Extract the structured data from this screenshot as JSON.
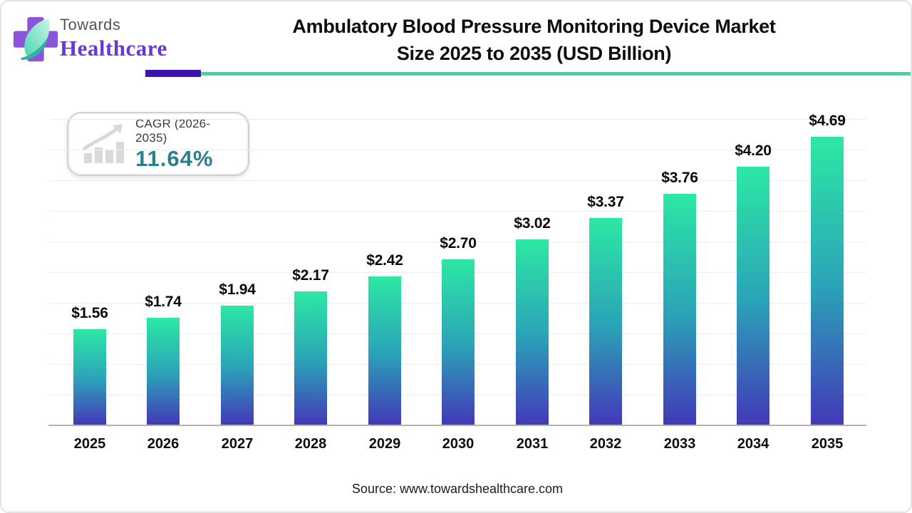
{
  "header": {
    "logo": {
      "line1": "Towards",
      "line2": "Healthcare"
    },
    "title_line1": "Ambulatory Blood Pressure Monitoring Device Market",
    "title_line2": "Size 2025 to 2035 (USD Billion)"
  },
  "cagr_badge": {
    "label": "CAGR (2026-2035)",
    "value": "11.64%"
  },
  "chart_data": {
    "type": "bar",
    "title": "Ambulatory Blood Pressure Monitoring Device Market Size 2025 to 2035 (USD Billion)",
    "categories": [
      "2025",
      "2026",
      "2027",
      "2028",
      "2029",
      "2030",
      "2031",
      "2032",
      "2033",
      "2034",
      "2035"
    ],
    "values": [
      1.56,
      1.74,
      1.94,
      2.17,
      2.42,
      2.7,
      3.02,
      3.37,
      3.76,
      4.2,
      4.69
    ],
    "value_labels": [
      "$1.56",
      "$1.74",
      "$1.94",
      "$2.17",
      "$2.42",
      "$2.70",
      "$3.02",
      "$3.37",
      "$3.76",
      "$4.20",
      "$4.69"
    ],
    "unit": "USD Billion",
    "xlabel": "",
    "ylabel": "",
    "ylim": [
      0,
      5
    ],
    "gridline_step": 0.5,
    "grid": "horizontal-faint",
    "legend": "none"
  },
  "footer": {
    "source": "Source: www.towardshealthcare.com"
  },
  "colors": {
    "bar_top": "#2DE8A4",
    "bar_mid": "#2BA3B8",
    "bar_bottom": "#4339B8",
    "accent_teal": "#3ED7A5",
    "accent_purple": "#3A16AD",
    "cagr_value": "#2B7F90",
    "logo_text_purple": "#6838D2",
    "logo_cross_purple": "#8A55D8",
    "logo_leaf_light": "#BDF0DC",
    "logo_leaf_dark": "#2FB3A3",
    "towards_gray": "#555555",
    "gridline": "#EDEDED",
    "baseline": "#B3B3B3"
  }
}
